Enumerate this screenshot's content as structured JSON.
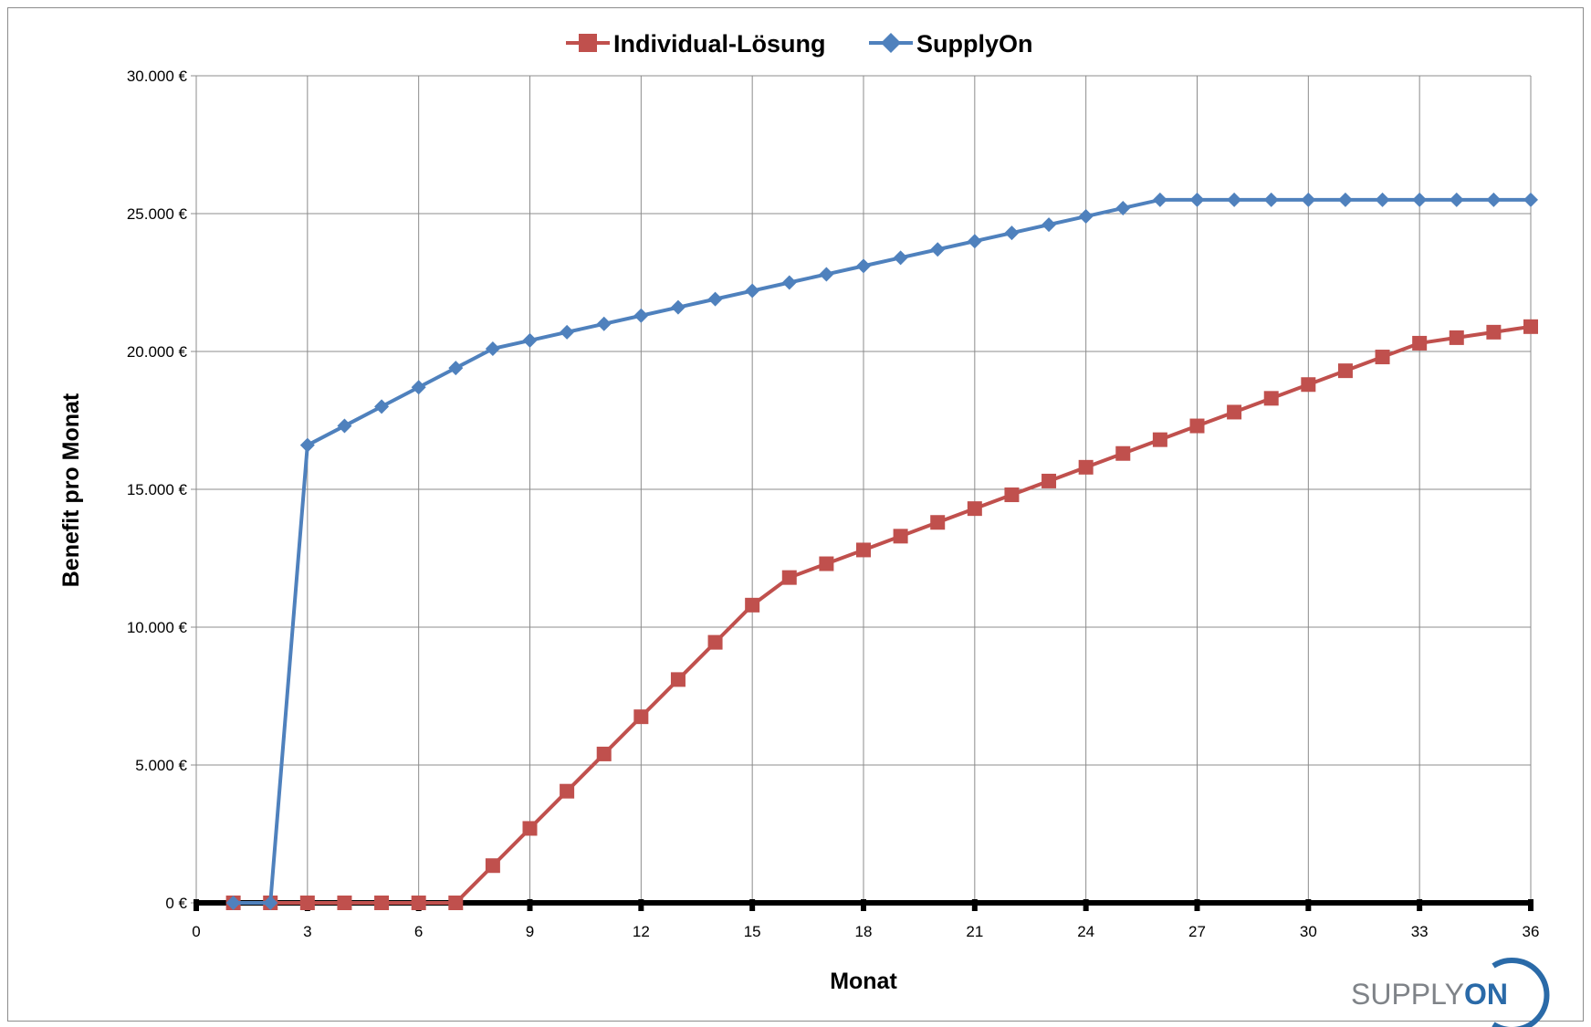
{
  "chart_data": {
    "type": "line",
    "xlabel": "Monat",
    "ylabel": "Benefit pro Monat",
    "xlim": [
      0,
      36
    ],
    "ylim": [
      0,
      30000
    ],
    "x_ticks": [
      0,
      3,
      6,
      9,
      12,
      15,
      18,
      21,
      24,
      27,
      30,
      33,
      36
    ],
    "y_ticks": [
      {
        "value": 0,
        "label": "0 €"
      },
      {
        "value": 5000,
        "label": "5.000 €"
      },
      {
        "value": 10000,
        "label": "10.000 €"
      },
      {
        "value": 15000,
        "label": "15.000 €"
      },
      {
        "value": 20000,
        "label": "20.000 €"
      },
      {
        "value": 25000,
        "label": "25.000 €"
      },
      {
        "value": 30000,
        "label": "30.000 €"
      }
    ],
    "grid": true,
    "legend_position": "top",
    "x": [
      1,
      2,
      3,
      4,
      5,
      6,
      7,
      8,
      9,
      10,
      11,
      12,
      13,
      14,
      15,
      16,
      17,
      18,
      19,
      20,
      21,
      22,
      23,
      24,
      25,
      26,
      27,
      28,
      29,
      30,
      31,
      32,
      33,
      34,
      35,
      36
    ],
    "series": [
      {
        "name": "Individual-Lösung",
        "color": "#c0504d",
        "marker": "square",
        "values": [
          0,
          0,
          0,
          0,
          0,
          0,
          0,
          1350,
          2700,
          4050,
          5400,
          6750,
          8100,
          9450,
          10800,
          11800,
          12300,
          12800,
          13300,
          13800,
          14300,
          14800,
          15300,
          15800,
          16300,
          16800,
          17300,
          17800,
          18300,
          18800,
          19300,
          19800,
          20300,
          20500,
          20700,
          20900
        ]
      },
      {
        "name": "SupplyOn",
        "color": "#4f81bd",
        "marker": "diamond",
        "values": [
          0,
          0,
          16600,
          17300,
          18000,
          18700,
          19400,
          20100,
          20400,
          20700,
          21000,
          21300,
          21600,
          21900,
          22200,
          22500,
          22800,
          23100,
          23400,
          23700,
          24000,
          24300,
          24600,
          24900,
          25200,
          25500,
          25500,
          25500,
          25500,
          25500,
          25500,
          25500,
          25500,
          25500,
          25500,
          25500
        ]
      }
    ]
  },
  "logo": {
    "text_part1": "SUPPLY",
    "text_part2": "ON",
    "color_gray": "#7f8388",
    "color_blue": "#2a6aa8"
  }
}
